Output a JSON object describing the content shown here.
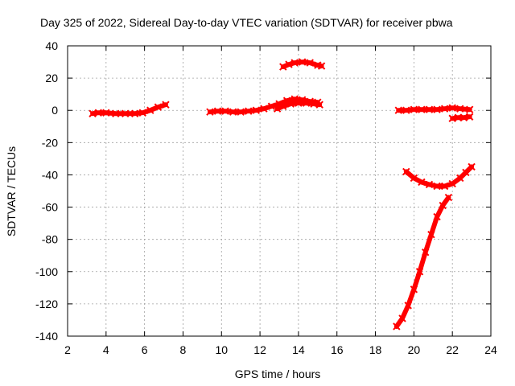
{
  "chart_data": {
    "type": "scatter",
    "title": "Day 325 of 2022, Sidereal Day-to-day VTEC variation (SDTVAR) for receiver pbwa",
    "xlabel": "GPS time / hours",
    "ylabel": "SDTVAR / TECUs",
    "xlim": [
      2,
      24
    ],
    "ylim": [
      -140,
      40
    ],
    "xticks": [
      2,
      4,
      6,
      8,
      10,
      12,
      14,
      16,
      18,
      20,
      22,
      24
    ],
    "yticks": [
      -140,
      -120,
      -100,
      -80,
      -60,
      -40,
      -20,
      0,
      20,
      40
    ],
    "grid": true,
    "marker_color": "#ff0000",
    "series": [
      {
        "name": "segment-1",
        "points": [
          [
            3.3,
            -2
          ],
          [
            3.6,
            -1.5
          ],
          [
            4.0,
            -1.5
          ],
          [
            4.5,
            -2
          ],
          [
            5.0,
            -2
          ],
          [
            5.5,
            -2
          ],
          [
            5.9,
            -1.5
          ],
          [
            6.3,
            0
          ],
          [
            6.7,
            2
          ],
          [
            7.1,
            3.5
          ]
        ]
      },
      {
        "name": "segment-2",
        "points": [
          [
            9.4,
            -1
          ],
          [
            9.8,
            -0.5
          ],
          [
            10.2,
            -0.5
          ],
          [
            10.6,
            -1
          ],
          [
            11.0,
            -1
          ],
          [
            11.4,
            -0.5
          ],
          [
            11.8,
            0
          ],
          [
            12.2,
            1
          ],
          [
            12.6,
            2.5
          ],
          [
            13.0,
            4
          ],
          [
            13.4,
            6
          ],
          [
            13.8,
            7
          ],
          [
            14.2,
            6.5
          ],
          [
            14.6,
            5.5
          ],
          [
            15.0,
            5
          ]
        ]
      },
      {
        "name": "segment-3",
        "points": [
          [
            12.9,
            1
          ],
          [
            13.2,
            2.5
          ],
          [
            13.6,
            4
          ],
          [
            14.0,
            4.5
          ],
          [
            14.4,
            4.5
          ],
          [
            14.8,
            4
          ],
          [
            15.1,
            3.5
          ]
        ]
      },
      {
        "name": "segment-4",
        "points": [
          [
            13.2,
            27
          ],
          [
            13.5,
            28.5
          ],
          [
            13.8,
            29.5
          ],
          [
            14.2,
            30
          ],
          [
            14.6,
            29.5
          ],
          [
            15.0,
            28
          ],
          [
            15.2,
            27.5
          ]
        ]
      },
      {
        "name": "segment-5",
        "points": [
          [
            19.2,
            0
          ],
          [
            19.6,
            0
          ],
          [
            20.0,
            0.5
          ],
          [
            20.4,
            0.5
          ],
          [
            20.8,
            0.5
          ],
          [
            21.2,
            0.5
          ],
          [
            21.6,
            1
          ],
          [
            22.0,
            1.5
          ],
          [
            22.4,
            1
          ],
          [
            22.9,
            0.5
          ]
        ]
      },
      {
        "name": "segment-6",
        "points": [
          [
            22.0,
            -5
          ],
          [
            22.3,
            -4.5
          ],
          [
            22.6,
            -4.5
          ],
          [
            22.9,
            -4
          ]
        ]
      },
      {
        "name": "segment-7",
        "points": [
          [
            19.6,
            -38
          ],
          [
            20.0,
            -42
          ],
          [
            20.4,
            -44.5
          ],
          [
            20.8,
            -46
          ],
          [
            21.2,
            -47
          ],
          [
            21.6,
            -47
          ],
          [
            22.0,
            -45.5
          ],
          [
            22.4,
            -42
          ],
          [
            22.7,
            -38.5
          ],
          [
            23.0,
            -35
          ]
        ]
      },
      {
        "name": "segment-8",
        "points": [
          [
            19.1,
            -134
          ],
          [
            19.4,
            -129
          ],
          [
            19.7,
            -121
          ],
          [
            20.0,
            -111
          ],
          [
            20.3,
            -100
          ],
          [
            20.6,
            -88
          ],
          [
            20.9,
            -77
          ],
          [
            21.2,
            -66
          ],
          [
            21.5,
            -59
          ],
          [
            21.8,
            -54
          ]
        ]
      }
    ]
  }
}
